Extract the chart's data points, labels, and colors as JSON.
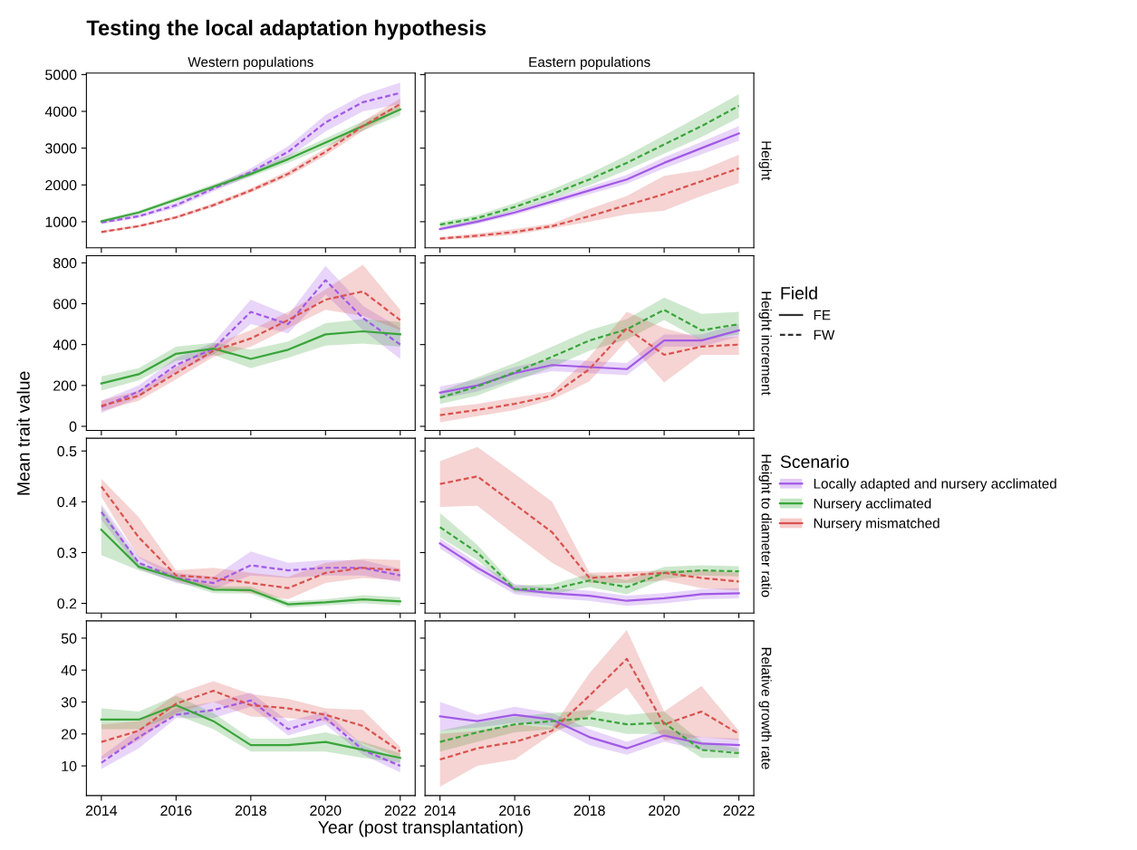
{
  "chart_data": [
    {
      "type": "other",
      "title": "Testing the local adaptation hypothesis",
      "xlabel": "Year (post transplantation)",
      "ylabel": "Mean trait value"
    },
    {
      "type": "line",
      "title": "Western populations",
      "x": [
        2014,
        2015,
        2016,
        2017,
        2018,
        2019,
        2020,
        2021,
        2022
      ],
      "xlim": [
        2013.6,
        2022.4
      ],
      "xticks": [
        2014,
        2016,
        2018,
        2020,
        2022
      ],
      "ylim": [
        290,
        5040
      ],
      "yticks": [
        1000,
        2000,
        3000,
        4000,
        5000
      ],
      "tick_labels": "y",
      "grid": false,
      "legend": "right",
      "legend_title": "Scenario",
      "series": [
        {
          "name": "Locally adapted and nursery acclimated",
          "color": "#a259e6",
          "line_style": "dashed",
          "values": [
            980,
            1150,
            1450,
            1900,
            2350,
            2900,
            3700,
            4250,
            4500
          ],
          "lower": [
            930,
            1100,
            1380,
            1820,
            2250,
            2750,
            3450,
            4000,
            4200
          ],
          "upper": [
            1030,
            1200,
            1520,
            1980,
            2450,
            3050,
            3900,
            4450,
            4780
          ]
        },
        {
          "name": "Nursery acclimated",
          "color": "#3aa53a",
          "line_style": "solid",
          "values": [
            1010,
            1250,
            1600,
            1950,
            2300,
            2700,
            3150,
            3600,
            4050
          ],
          "lower": [
            960,
            1200,
            1540,
            1880,
            2220,
            2600,
            3030,
            3470,
            3900
          ],
          "upper": [
            1060,
            1300,
            1660,
            2020,
            2380,
            2800,
            3270,
            3730,
            4200
          ]
        },
        {
          "name": "Nursery mismatched",
          "color": "#d9534f",
          "line_style": "dashed",
          "values": [
            720,
            880,
            1120,
            1450,
            1850,
            2300,
            2900,
            3600,
            4200
          ],
          "lower": [
            690,
            845,
            1080,
            1400,
            1790,
            2220,
            2800,
            3470,
            4050
          ],
          "upper": [
            750,
            915,
            1160,
            1500,
            1910,
            2380,
            3000,
            3730,
            4350
          ]
        }
      ]
    },
    {
      "type": "line",
      "x": [
        2014,
        2015,
        2016,
        2017,
        2018,
        2019,
        2020,
        2021,
        2022
      ],
      "xlim": [
        2013.6,
        2022.4
      ],
      "xticks": [
        2014,
        2016,
        2018,
        2020,
        2022
      ],
      "ylim": [
        290,
        5040
      ],
      "yticks": [
        1000,
        2000,
        3000,
        4000,
        5000
      ],
      "tick_labels": false,
      "grid": false,
      "title": "Eastern populations",
      "y2label": "Height",
      "series": [
        {
          "color": "#a259e6",
          "line_style": "solid",
          "values": [
            800,
            1000,
            1250,
            1550,
            1850,
            2150,
            2600,
            3000,
            3400
          ],
          "lower": [
            750,
            940,
            1180,
            1470,
            1750,
            2030,
            2450,
            2830,
            3200
          ],
          "upper": [
            850,
            1060,
            1320,
            1630,
            1950,
            2270,
            2750,
            3170,
            3600
          ]
        },
        {
          "color": "#3aa53a",
          "line_style": "dashed",
          "values": [
            920,
            1100,
            1400,
            1750,
            2150,
            2600,
            3100,
            3600,
            4150
          ],
          "lower": [
            850,
            1020,
            1300,
            1620,
            1990,
            2400,
            2850,
            3300,
            3830
          ],
          "upper": [
            990,
            1180,
            1500,
            1880,
            2310,
            2800,
            3350,
            3900,
            4470
          ]
        },
        {
          "color": "#d9534f",
          "line_style": "dashed",
          "values": [
            540,
            620,
            720,
            880,
            1150,
            1450,
            1750,
            2100,
            2450
          ],
          "lower": [
            500,
            560,
            650,
            820,
            1000,
            1200,
            1300,
            1700,
            2050
          ],
          "upper": [
            580,
            680,
            800,
            950,
            1350,
            1700,
            2250,
            2400,
            2820
          ]
        }
      ]
    },
    {
      "type": "line",
      "x": [
        2014,
        2015,
        2016,
        2017,
        2018,
        2019,
        2020,
        2021,
        2022
      ],
      "xlim": [
        2013.6,
        2022.4
      ],
      "xticks": [
        2014,
        2016,
        2018,
        2020,
        2022
      ],
      "ylim": [
        -20,
        835
      ],
      "yticks": [
        0,
        200,
        400,
        600,
        800
      ],
      "tick_labels": "y",
      "grid": false,
      "series": [
        {
          "color": "#a259e6",
          "line_style": "dashed",
          "values": [
            95,
            170,
            300,
            380,
            560,
            500,
            715,
            530,
            400
          ],
          "lower": [
            65,
            140,
            265,
            350,
            500,
            455,
            645,
            470,
            330
          ],
          "upper": [
            125,
            200,
            335,
            410,
            620,
            545,
            785,
            590,
            480
          ]
        },
        {
          "color": "#3aa53a",
          "line_style": "solid",
          "values": [
            210,
            255,
            355,
            380,
            330,
            375,
            450,
            465,
            450
          ],
          "lower": [
            175,
            225,
            320,
            350,
            285,
            335,
            395,
            405,
            390
          ],
          "upper": [
            245,
            285,
            390,
            410,
            375,
            415,
            505,
            525,
            510
          ]
        },
        {
          "color": "#d9534f",
          "line_style": "dashed",
          "values": [
            100,
            150,
            260,
            370,
            430,
            520,
            620,
            660,
            520
          ],
          "lower": [
            75,
            125,
            230,
            340,
            390,
            480,
            570,
            540,
            470
          ],
          "upper": [
            125,
            175,
            290,
            400,
            470,
            560,
            670,
            790,
            570
          ]
        }
      ]
    },
    {
      "type": "line",
      "x": [
        2014,
        2015,
        2016,
        2017,
        2018,
        2019,
        2020,
        2021,
        2022
      ],
      "xlim": [
        2013.6,
        2022.4
      ],
      "xticks": [
        2014,
        2016,
        2018,
        2020,
        2022
      ],
      "ylim": [
        -20,
        835
      ],
      "yticks": [
        0,
        200,
        400,
        600,
        800
      ],
      "tick_labels": false,
      "grid": false,
      "y2label": "Height increment",
      "series": [
        {
          "color": "#a259e6",
          "line_style": "solid",
          "values": [
            165,
            200,
            260,
            300,
            290,
            280,
            420,
            420,
            470
          ],
          "lower": [
            135,
            170,
            230,
            270,
            260,
            250,
            390,
            390,
            440
          ],
          "upper": [
            195,
            230,
            290,
            330,
            320,
            310,
            450,
            450,
            500
          ]
        },
        {
          "color": "#3aa53a",
          "line_style": "dashed",
          "values": [
            140,
            195,
            265,
            340,
            420,
            475,
            570,
            470,
            500
          ],
          "lower": [
            110,
            150,
            220,
            290,
            370,
            425,
            520,
            420,
            450
          ],
          "upper": [
            170,
            240,
            310,
            390,
            470,
            525,
            630,
            550,
            560
          ]
        },
        {
          "color": "#d9534f",
          "line_style": "dashed",
          "values": [
            55,
            80,
            110,
            150,
            280,
            480,
            350,
            390,
            400
          ],
          "lower": [
            20,
            50,
            80,
            130,
            220,
            420,
            215,
            350,
            350
          ],
          "upper": [
            90,
            110,
            140,
            170,
            340,
            560,
            480,
            430,
            440
          ]
        }
      ]
    },
    {
      "type": "line",
      "x": [
        2014,
        2015,
        2016,
        2017,
        2018,
        2019,
        2020,
        2021,
        2022
      ],
      "xlim": [
        2013.6,
        2022.4
      ],
      "xticks": [
        2014,
        2016,
        2018,
        2020,
        2022
      ],
      "ylim": [
        0.181,
        0.525
      ],
      "yticks": [
        0.2,
        0.3,
        0.4,
        0.5
      ],
      "tick_labels": "y",
      "grid": false,
      "series": [
        {
          "color": "#a259e6",
          "line_style": "dashed",
          "values": [
            0.38,
            0.28,
            0.25,
            0.24,
            0.275,
            0.265,
            0.27,
            0.27,
            0.255
          ],
          "lower": [
            0.365,
            0.268,
            0.24,
            0.228,
            0.255,
            0.25,
            0.255,
            0.255,
            0.242
          ],
          "upper": [
            0.395,
            0.292,
            0.26,
            0.252,
            0.302,
            0.28,
            0.285,
            0.285,
            0.268
          ]
        },
        {
          "color": "#3aa53a",
          "line_style": "solid",
          "values": [
            0.345,
            0.272,
            0.25,
            0.227,
            0.226,
            0.198,
            0.202,
            0.208,
            0.204
          ],
          "lower": [
            0.295,
            0.265,
            0.243,
            0.22,
            0.219,
            0.192,
            0.196,
            0.2,
            0.196
          ],
          "upper": [
            0.39,
            0.279,
            0.257,
            0.234,
            0.233,
            0.204,
            0.208,
            0.216,
            0.212
          ]
        },
        {
          "color": "#d9534f",
          "line_style": "dashed",
          "values": [
            0.43,
            0.33,
            0.255,
            0.25,
            0.24,
            0.23,
            0.26,
            0.27,
            0.265
          ],
          "lower": [
            0.41,
            0.29,
            0.245,
            0.23,
            0.22,
            0.208,
            0.24,
            0.25,
            0.245
          ],
          "upper": [
            0.445,
            0.37,
            0.265,
            0.27,
            0.26,
            0.252,
            0.28,
            0.288,
            0.285
          ]
        }
      ]
    },
    {
      "type": "line",
      "x": [
        2014,
        2015,
        2016,
        2017,
        2018,
        2019,
        2020,
        2021,
        2022
      ],
      "xlim": [
        2013.6,
        2022.4
      ],
      "xticks": [
        2014,
        2016,
        2018,
        2020,
        2022
      ],
      "ylim": [
        0.181,
        0.525
      ],
      "yticks": [
        0.2,
        0.3,
        0.4,
        0.5
      ],
      "tick_labels": false,
      "grid": false,
      "y2label": "Height to diameter ratio",
      "series": [
        {
          "color": "#a259e6",
          "line_style": "solid",
          "values": [
            0.318,
            0.27,
            0.228,
            0.22,
            0.215,
            0.205,
            0.21,
            0.218,
            0.22
          ],
          "lower": [
            0.308,
            0.26,
            0.218,
            0.21,
            0.205,
            0.195,
            0.2,
            0.208,
            0.21
          ],
          "upper": [
            0.328,
            0.28,
            0.238,
            0.23,
            0.225,
            0.215,
            0.22,
            0.228,
            0.23
          ]
        },
        {
          "color": "#3aa53a",
          "line_style": "dashed",
          "values": [
            0.35,
            0.3,
            0.228,
            0.228,
            0.245,
            0.232,
            0.26,
            0.265,
            0.263
          ],
          "lower": [
            0.33,
            0.285,
            0.222,
            0.218,
            0.232,
            0.218,
            0.248,
            0.255,
            0.253
          ],
          "upper": [
            0.378,
            0.315,
            0.235,
            0.238,
            0.258,
            0.246,
            0.272,
            0.275,
            0.273
          ]
        },
        {
          "color": "#d9534f",
          "line_style": "dashed",
          "values": [
            0.435,
            0.45,
            0.395,
            0.34,
            0.25,
            0.255,
            0.26,
            0.25,
            0.243
          ],
          "lower": [
            0.39,
            0.392,
            0.335,
            0.28,
            0.24,
            0.24,
            0.245,
            0.23,
            0.225
          ],
          "upper": [
            0.48,
            0.508,
            0.455,
            0.4,
            0.26,
            0.262,
            0.265,
            0.265,
            0.26
          ]
        }
      ]
    },
    {
      "type": "line",
      "x": [
        2014,
        2015,
        2016,
        2017,
        2018,
        2019,
        2020,
        2021,
        2022
      ],
      "xlim": [
        2013.6,
        2022.4
      ],
      "xticks": [
        2014,
        2016,
        2018,
        2020,
        2022
      ],
      "ylim": [
        0.7,
        55.4
      ],
      "yticks": [
        10,
        20,
        30,
        40,
        50
      ],
      "grid": false,
      "series": [
        {
          "color": "#a259e6",
          "line_style": "dashed",
          "values": [
            11,
            19,
            26,
            27.5,
            30.5,
            21.5,
            25,
            15,
            10
          ],
          "lower": [
            9,
            15.5,
            25,
            25,
            28.5,
            19.5,
            23,
            13.5,
            8
          ],
          "upper": [
            13,
            21.5,
            28,
            30,
            33,
            24,
            27,
            16.5,
            12
          ]
        },
        {
          "color": "#3aa53a",
          "line_style": "solid",
          "values": [
            24.5,
            24.5,
            29,
            24,
            16.5,
            16.5,
            17.5,
            15,
            12.5
          ],
          "lower": [
            21.5,
            21.5,
            26,
            21.5,
            14.5,
            14.5,
            14.5,
            12.5,
            11
          ],
          "upper": [
            28,
            27,
            32,
            26.5,
            18.5,
            18.5,
            20.5,
            17.5,
            14
          ]
        },
        {
          "color": "#d9534f",
          "line_style": "dashed",
          "values": [
            17.5,
            21,
            29.5,
            33.5,
            29,
            28,
            26,
            22.5,
            14.5
          ],
          "lower": [
            12,
            18,
            26.5,
            30,
            25.5,
            25,
            24,
            17,
            12.5
          ],
          "upper": [
            23,
            24,
            32.5,
            36.5,
            32.5,
            31,
            28,
            27.5,
            16
          ]
        }
      ]
    },
    {
      "type": "line",
      "x": [
        2014,
        2015,
        2016,
        2017,
        2018,
        2019,
        2020,
        2021,
        2022
      ],
      "xlim": [
        2013.6,
        2022.4
      ],
      "xticks": [
        2014,
        2016,
        2018,
        2020,
        2022
      ],
      "ylim": [
        0.7,
        55.4
      ],
      "yticks": [
        10,
        20,
        30,
        40,
        50
      ],
      "tick_labels": "x",
      "grid": false,
      "y2label": "Relative growth rate",
      "series": [
        {
          "color": "#a259e6",
          "line_style": "solid",
          "values": [
            25.5,
            24,
            26,
            24.5,
            19,
            15.5,
            19.5,
            17,
            16.5
          ],
          "lower": [
            21,
            22,
            23.5,
            22.5,
            16.5,
            13.5,
            17.5,
            15,
            14.5
          ],
          "upper": [
            30,
            26,
            28.5,
            26.5,
            21.5,
            17.5,
            21.5,
            19,
            18.5
          ]
        },
        {
          "color": "#3aa53a",
          "line_style": "dashed",
          "values": [
            17.5,
            20.5,
            23,
            24,
            25,
            23,
            23.5,
            15,
            14
          ],
          "lower": [
            14.5,
            17.5,
            20.5,
            21.5,
            22.5,
            20,
            20,
            12.5,
            12.5
          ],
          "upper": [
            21,
            23.5,
            25.5,
            26.5,
            27.5,
            26,
            27,
            17.5,
            15.5
          ]
        },
        {
          "color": "#d9534f",
          "line_style": "dashed",
          "values": [
            12,
            15.5,
            17.5,
            21,
            32,
            43.5,
            23,
            27,
            20
          ],
          "lower": [
            3.5,
            10,
            12,
            20,
            26,
            34.5,
            18,
            19,
            18
          ],
          "upper": [
            20,
            21,
            23,
            22,
            39,
            52.5,
            27,
            35,
            21
          ]
        }
      ]
    },
    {
      "type": "other",
      "legend": "right",
      "legend_title": "Field",
      "series": [
        {
          "name": "FE",
          "color": "#333333",
          "line_style": "solid"
        },
        {
          "name": "FW",
          "color": "#333333",
          "line_style": "dashed"
        }
      ]
    }
  ]
}
